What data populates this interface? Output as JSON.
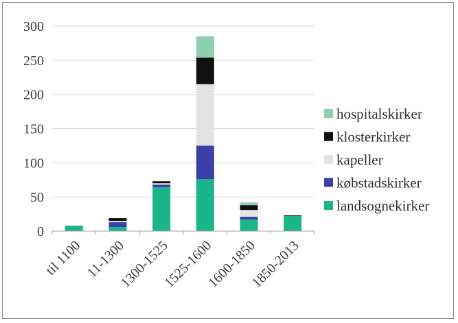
{
  "chart_data": {
    "type": "bar",
    "stacked": true,
    "categories": [
      "til 1100",
      "11-1300",
      "1300-1525",
      "1525-1600",
      "1600-1850",
      "1850-2013"
    ],
    "series": [
      {
        "name": "landsognekirker",
        "color": "#1bb58a",
        "values": [
          8,
          6,
          64,
          76,
          17,
          22
        ]
      },
      {
        "name": "købstadskirker",
        "color": "#3b3fa8",
        "values": [
          0,
          7,
          4,
          49,
          4,
          0
        ]
      },
      {
        "name": "kapeller",
        "color": "#e4e3e3",
        "values": [
          0,
          2,
          2,
          90,
          10,
          0
        ]
      },
      {
        "name": "klosterkirker",
        "color": "#101010",
        "values": [
          0,
          4,
          3,
          39,
          7,
          1
        ]
      },
      {
        "name": "hospitalskirker",
        "color": "#8fcfb2",
        "values": [
          0,
          0,
          0,
          31,
          4,
          0
        ]
      }
    ],
    "ylim": [
      0,
      300
    ],
    "yticks": [
      0,
      50,
      100,
      150,
      200,
      250,
      300
    ],
    "grid": true,
    "legend_position": "right"
  }
}
